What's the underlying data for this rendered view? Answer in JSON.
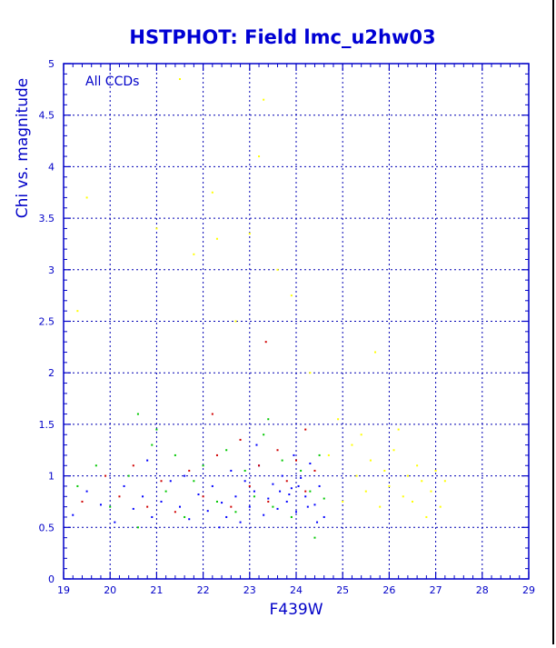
{
  "chart_data": {
    "type": "scatter",
    "title": "HSTPHOT: Field lmc_u2hw03",
    "xlabel": "F439W",
    "ylabel": "Chi vs. magnitude",
    "annotation": "All CCDs",
    "xlim": [
      19,
      29
    ],
    "ylim": [
      0,
      5
    ],
    "x_ticks": [
      19,
      20,
      21,
      22,
      23,
      24,
      25,
      26,
      27,
      28,
      29
    ],
    "y_ticks": [
      0,
      0.5,
      1,
      1.5,
      2,
      2.5,
      3,
      3.5,
      4,
      4.5,
      5
    ],
    "grid": true,
    "colors": {
      "axis": "#0000c8",
      "title": "#0000d4",
      "grid": "#0000b4",
      "series": [
        "#0000ff",
        "#00c800",
        "#d00000",
        "#ffff00"
      ]
    },
    "series": [
      {
        "color": "#0000ff",
        "points": [
          [
            19.2,
            0.62
          ],
          [
            19.5,
            0.85
          ],
          [
            19.8,
            0.72
          ],
          [
            20.1,
            0.55
          ],
          [
            20.3,
            0.9
          ],
          [
            20.5,
            0.68
          ],
          [
            20.7,
            0.8
          ],
          [
            20.9,
            0.6
          ],
          [
            21.1,
            0.75
          ],
          [
            21.3,
            0.95
          ],
          [
            21.5,
            0.7
          ],
          [
            21.7,
            0.58
          ],
          [
            21.9,
            0.82
          ],
          [
            22.1,
            0.66
          ],
          [
            22.2,
            0.9
          ],
          [
            22.4,
            0.74
          ],
          [
            22.5,
            0.6
          ],
          [
            22.6,
            1.05
          ],
          [
            22.7,
            0.8
          ],
          [
            22.8,
            0.55
          ],
          [
            22.9,
            0.95
          ],
          [
            23.0,
            0.7
          ],
          [
            23.1,
            0.85
          ],
          [
            23.2,
            1.1
          ],
          [
            23.3,
            0.62
          ],
          [
            23.4,
            0.78
          ],
          [
            23.5,
            0.92
          ],
          [
            23.6,
            0.68
          ],
          [
            23.7,
            1.0
          ],
          [
            23.8,
            0.75
          ],
          [
            23.9,
            0.88
          ],
          [
            24.0,
            0.65
          ],
          [
            24.1,
            0.98
          ],
          [
            24.2,
            0.8
          ],
          [
            24.3,
            1.12
          ],
          [
            24.4,
            0.72
          ],
          [
            24.5,
            0.9
          ],
          [
            24.6,
            0.6
          ],
          [
            23.85,
            0.82
          ],
          [
            24.05,
            0.9
          ],
          [
            23.65,
            0.85
          ],
          [
            24.25,
            0.7
          ],
          [
            22.35,
            0.5
          ],
          [
            21.6,
            1.0
          ],
          [
            20.8,
            1.15
          ],
          [
            23.15,
            1.3
          ],
          [
            23.95,
            1.2
          ],
          [
            24.45,
            0.55
          ]
        ]
      },
      {
        "color": "#00c800",
        "points": [
          [
            19.3,
            0.9
          ],
          [
            19.7,
            1.1
          ],
          [
            20.0,
            0.7
          ],
          [
            20.4,
            1.0
          ],
          [
            20.6,
            0.5
          ],
          [
            20.9,
            1.3
          ],
          [
            21.2,
            0.85
          ],
          [
            21.4,
            1.2
          ],
          [
            21.6,
            0.6
          ],
          [
            21.8,
            0.95
          ],
          [
            22.0,
            1.1
          ],
          [
            22.3,
            0.75
          ],
          [
            22.5,
            1.25
          ],
          [
            22.7,
            0.65
          ],
          [
            22.9,
            1.05
          ],
          [
            23.1,
            0.8
          ],
          [
            23.3,
            1.4
          ],
          [
            23.5,
            0.7
          ],
          [
            23.7,
            1.15
          ],
          [
            23.9,
            0.6
          ],
          [
            24.1,
            1.05
          ],
          [
            24.3,
            0.85
          ],
          [
            24.5,
            1.2
          ],
          [
            24.6,
            0.78
          ],
          [
            20.6,
            1.6
          ],
          [
            21.0,
            1.45
          ],
          [
            23.4,
            1.55
          ],
          [
            24.4,
            0.4
          ]
        ]
      },
      {
        "color": "#d00000",
        "points": [
          [
            19.4,
            0.75
          ],
          [
            19.9,
            1.0
          ],
          [
            20.2,
            0.8
          ],
          [
            20.5,
            1.1
          ],
          [
            20.8,
            0.7
          ],
          [
            21.1,
            0.95
          ],
          [
            21.4,
            0.65
          ],
          [
            21.7,
            1.05
          ],
          [
            22.0,
            0.8
          ],
          [
            22.3,
            1.2
          ],
          [
            22.6,
            0.7
          ],
          [
            22.8,
            1.35
          ],
          [
            23.0,
            0.9
          ],
          [
            23.2,
            1.1
          ],
          [
            23.4,
            0.75
          ],
          [
            23.6,
            1.25
          ],
          [
            23.8,
            0.95
          ],
          [
            24.0,
            1.15
          ],
          [
            24.2,
            0.85
          ],
          [
            24.4,
            1.05
          ],
          [
            22.2,
            1.6
          ],
          [
            23.35,
            2.3
          ],
          [
            24.2,
            1.45
          ]
        ]
      },
      {
        "color": "#ffff00",
        "points": [
          [
            19.3,
            2.6
          ],
          [
            19.5,
            3.7
          ],
          [
            21.0,
            3.4
          ],
          [
            21.5,
            4.85
          ],
          [
            21.8,
            3.15
          ],
          [
            22.2,
            3.75
          ],
          [
            22.3,
            3.3
          ],
          [
            23.0,
            3.35
          ],
          [
            23.2,
            4.1
          ],
          [
            23.3,
            4.65
          ],
          [
            22.7,
            2.5
          ],
          [
            23.6,
            3.0
          ],
          [
            23.9,
            2.75
          ],
          [
            24.3,
            2.0
          ],
          [
            24.9,
            1.55
          ],
          [
            25.2,
            1.3
          ],
          [
            25.3,
            1.0
          ],
          [
            25.5,
            0.85
          ],
          [
            25.6,
            1.15
          ],
          [
            25.8,
            0.7
          ],
          [
            25.9,
            1.05
          ],
          [
            26.0,
            0.9
          ],
          [
            26.1,
            1.25
          ],
          [
            26.3,
            0.8
          ],
          [
            26.4,
            1.0
          ],
          [
            26.5,
            0.75
          ],
          [
            26.6,
            1.1
          ],
          [
            26.7,
            0.95
          ],
          [
            26.9,
            0.85
          ],
          [
            27.0,
            1.05
          ],
          [
            27.1,
            0.7
          ],
          [
            27.2,
            0.95
          ],
          [
            25.4,
            1.4
          ],
          [
            26.2,
            1.45
          ],
          [
            25.7,
            2.2
          ],
          [
            24.7,
            1.2
          ],
          [
            25.0,
            0.75
          ],
          [
            26.8,
            0.6
          ]
        ]
      }
    ]
  }
}
